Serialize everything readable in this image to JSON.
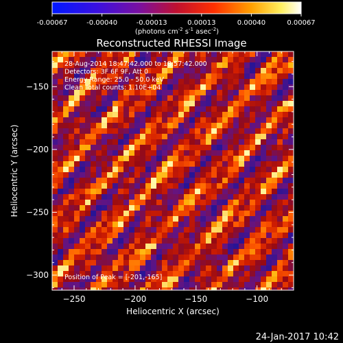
{
  "chart_data": {
    "type": "heatmap",
    "title": "Reconstructed RHESSI Image",
    "xlabel": "Heliocentric X (arcsec)",
    "ylabel": "Heliocentric Y (arcsec)",
    "xlim": [
      -268,
      -70
    ],
    "ylim": [
      -312,
      -122
    ],
    "xticks": [
      -250,
      -200,
      -150,
      -100
    ],
    "yticks": [
      -300,
      -250,
      -200,
      -150
    ],
    "colorbar": {
      "ticks": [
        "-0.00067",
        "-0.00040",
        "-0.00013",
        "0.00013",
        "0.00040",
        "0.00067"
      ],
      "unit_label": "(photons cm",
      "unit_sup1": "-2",
      "unit_mid1": " s",
      "unit_sup2": "-1",
      "unit_mid2": " asec",
      "unit_sup3": "-2",
      "unit_end": ")",
      "range": [
        -0.00067,
        0.00067
      ],
      "colormap": "blue-purple-red-orange-yellow-white"
    },
    "annotations": [
      "28-Aug-2014 18:47:42.000 to 18:57:42.000",
      "Detectors: 3F 6F 9F, Att 0",
      "Energy Range: 25.0 - 50.0 keV",
      "Clean    Total counts: 1.10E+04"
    ],
    "peak_text": "Position of Peak = [-201,-165]",
    "pattern": "diagonal striped fringe pattern, stripes running from upper-left to lower-right"
  },
  "footer": {
    "date": "24-Jan-2017 10:42"
  }
}
